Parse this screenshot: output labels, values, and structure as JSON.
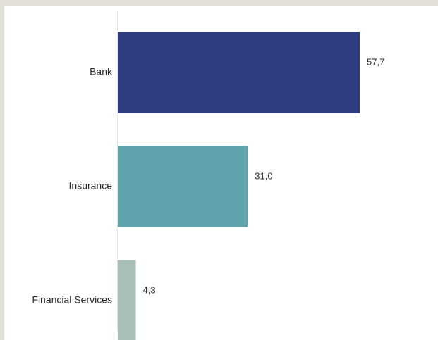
{
  "chart_data": {
    "type": "bar",
    "orientation": "horizontal",
    "categories": [
      "Bank",
      "Insurance",
      "Financial Services"
    ],
    "values": [
      57.7,
      31.0,
      4.3
    ],
    "value_labels": [
      "57,7",
      "31,0",
      "4,3"
    ],
    "colors": [
      "#2e3c80",
      "#5fa3ad",
      "#a9bfb5"
    ],
    "xlim": [
      0,
      60
    ],
    "title": "",
    "xlabel": "",
    "ylabel": "",
    "grid": false,
    "legend": "none"
  }
}
